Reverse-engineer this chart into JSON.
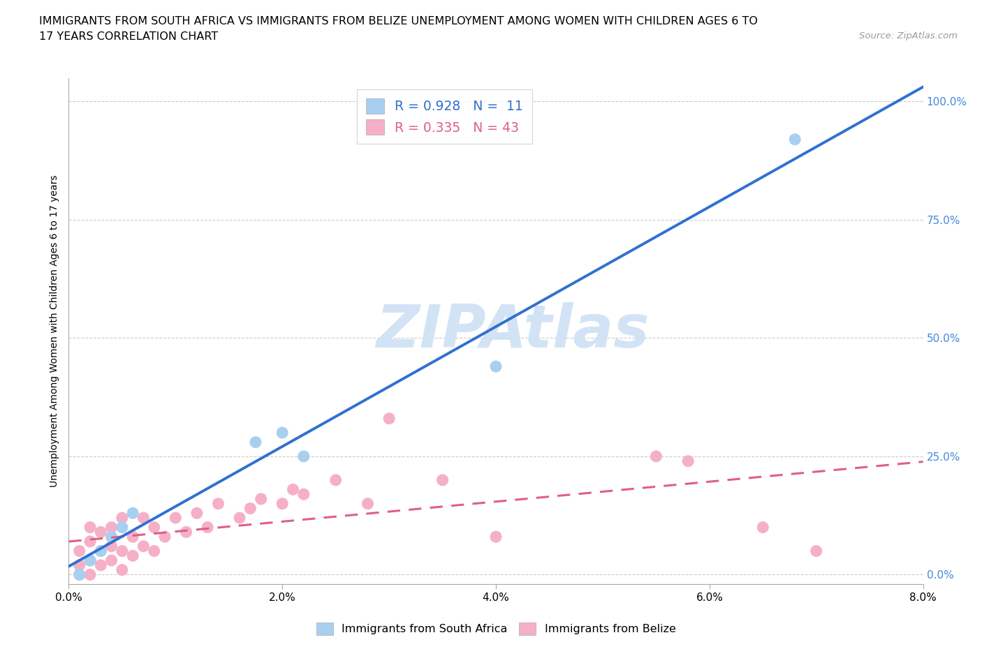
{
  "title_line1": "IMMIGRANTS FROM SOUTH AFRICA VS IMMIGRANTS FROM BELIZE UNEMPLOYMENT AMONG WOMEN WITH CHILDREN AGES 6 TO",
  "title_line2": "17 YEARS CORRELATION CHART",
  "source": "Source: ZipAtlas.com",
  "ylabel": "Unemployment Among Women with Children Ages 6 to 17 years",
  "xlim": [
    0.0,
    0.08
  ],
  "ylim": [
    -0.02,
    1.05
  ],
  "xtick_labels": [
    "0.0%",
    "2.0%",
    "4.0%",
    "6.0%",
    "8.0%"
  ],
  "xtick_values": [
    0.0,
    0.02,
    0.04,
    0.06,
    0.08
  ],
  "ytick_labels": [
    "0.0%",
    "25.0%",
    "50.0%",
    "75.0%",
    "100.0%"
  ],
  "ytick_values": [
    0.0,
    0.25,
    0.5,
    0.75,
    1.0
  ],
  "watermark": "ZIPAtlas",
  "legend_r1": "R = 0.928",
  "legend_n1": "N =  11",
  "legend_r2": "R = 0.335",
  "legend_n2": "N = 43",
  "legend_label1": "Immigrants from South Africa",
  "legend_label2": "Immigrants from Belize",
  "blue_scatter_color": "#a8cff0",
  "pink_scatter_color": "#f5b0c8",
  "blue_line_color": "#3070d0",
  "pink_line_color": "#e06080",
  "ytick_color": "#4488dd",
  "background_color": "#ffffff",
  "grid_color": "#cccccc",
  "south_africa_x": [
    0.001,
    0.002,
    0.003,
    0.004,
    0.005,
    0.006,
    0.0175,
    0.02,
    0.022,
    0.04,
    0.068
  ],
  "south_africa_y": [
    0.0,
    0.03,
    0.05,
    0.08,
    0.1,
    0.13,
    0.28,
    0.3,
    0.25,
    0.44,
    0.92
  ],
  "belize_x": [
    0.001,
    0.001,
    0.001,
    0.002,
    0.002,
    0.002,
    0.002,
    0.003,
    0.003,
    0.003,
    0.004,
    0.004,
    0.004,
    0.005,
    0.005,
    0.005,
    0.006,
    0.006,
    0.007,
    0.007,
    0.008,
    0.008,
    0.009,
    0.01,
    0.011,
    0.012,
    0.013,
    0.014,
    0.016,
    0.017,
    0.018,
    0.02,
    0.021,
    0.022,
    0.025,
    0.028,
    0.03,
    0.035,
    0.04,
    0.055,
    0.058,
    0.065,
    0.07
  ],
  "belize_y": [
    0.0,
    0.02,
    0.05,
    0.0,
    0.03,
    0.07,
    0.1,
    0.02,
    0.05,
    0.09,
    0.03,
    0.06,
    0.1,
    0.01,
    0.05,
    0.12,
    0.04,
    0.08,
    0.06,
    0.12,
    0.05,
    0.1,
    0.08,
    0.12,
    0.09,
    0.13,
    0.1,
    0.15,
    0.12,
    0.14,
    0.16,
    0.15,
    0.18,
    0.17,
    0.2,
    0.15,
    0.33,
    0.2,
    0.08,
    0.25,
    0.24,
    0.1,
    0.05
  ],
  "title_fontsize": 11.5,
  "axis_label_fontsize": 10,
  "tick_fontsize": 11,
  "source_fontsize": 9.5
}
